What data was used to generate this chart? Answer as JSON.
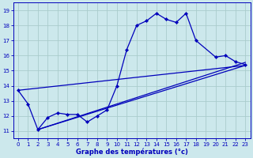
{
  "title": "",
  "xlabel": "Graphe des températures (°c)",
  "bg_color": "#cce8ec",
  "grid_color": "#aacccc",
  "line_color": "#0000bb",
  "xlim": [
    -0.5,
    23.5
  ],
  "ylim": [
    10.5,
    19.5
  ],
  "xticks": [
    0,
    1,
    2,
    3,
    4,
    5,
    6,
    7,
    8,
    9,
    10,
    11,
    12,
    13,
    14,
    15,
    16,
    17,
    18,
    19,
    20,
    21,
    22,
    23
  ],
  "yticks": [
    11,
    12,
    13,
    14,
    15,
    16,
    17,
    18,
    19
  ],
  "main_x": [
    0,
    1,
    2,
    3,
    4,
    5,
    6,
    7,
    8,
    9,
    10,
    11,
    12,
    13,
    14,
    15,
    16,
    17,
    18,
    20,
    21,
    22,
    23
  ],
  "main_y": [
    13.7,
    12.8,
    11.1,
    11.9,
    12.2,
    12.1,
    12.1,
    11.6,
    12.0,
    12.4,
    14.0,
    16.4,
    18.0,
    18.3,
    18.8,
    18.4,
    18.2,
    18.8,
    17.0,
    15.9,
    16.0,
    15.6,
    15.4
  ],
  "trend1_x": [
    2,
    23
  ],
  "trend1_y": [
    11.1,
    15.35
  ],
  "trend2_x": [
    2,
    23
  ],
  "trend2_y": [
    11.1,
    15.55
  ],
  "trend3_x": [
    0,
    23
  ],
  "trend3_y": [
    13.7,
    15.35
  ]
}
